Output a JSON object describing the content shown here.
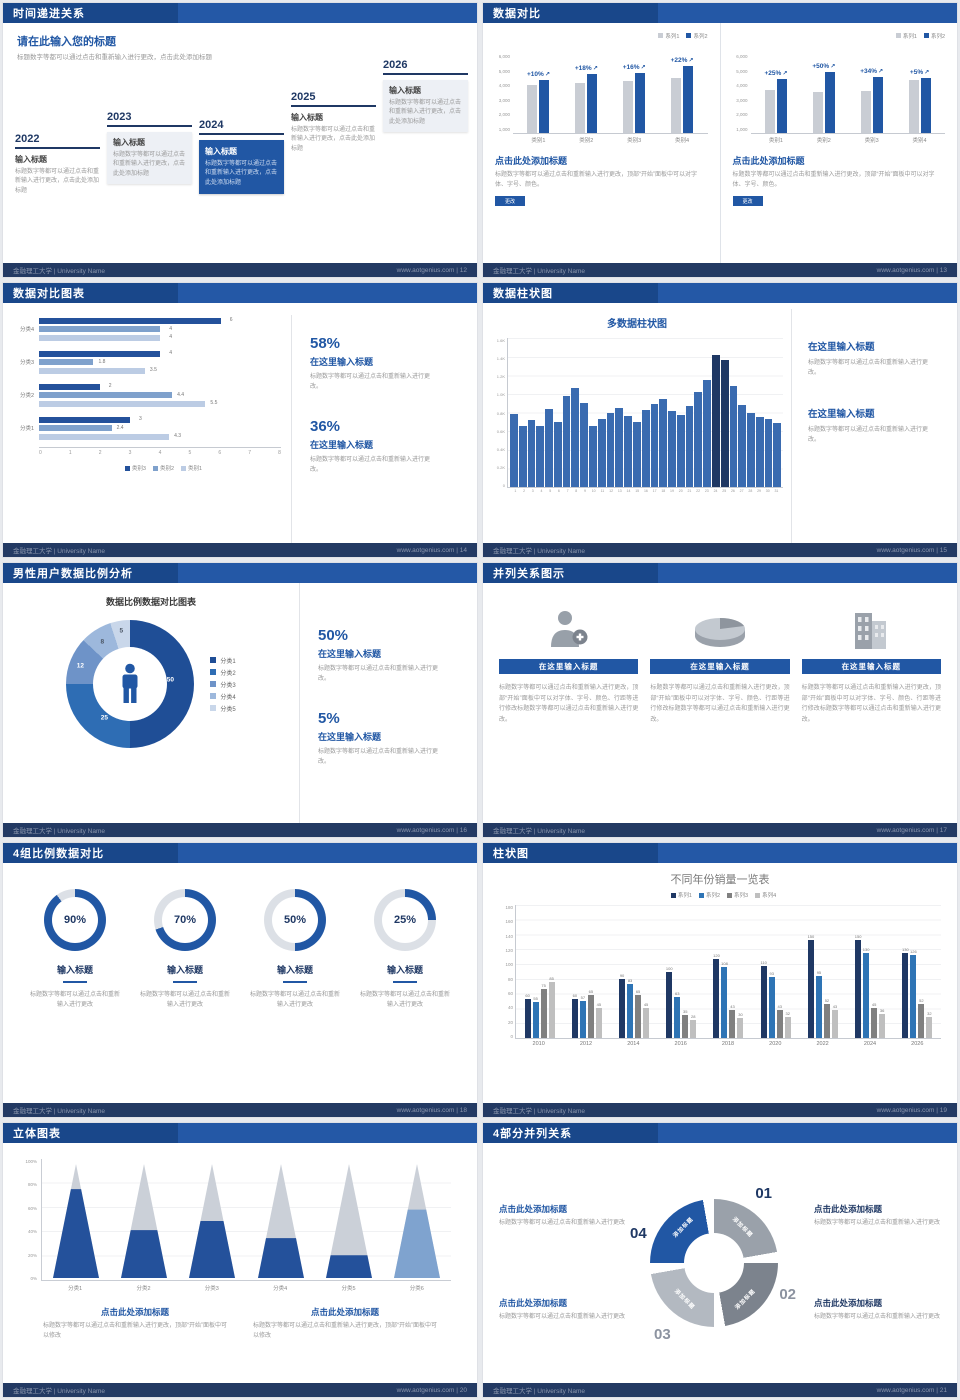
{
  "colors": {
    "accent": "#2157A4",
    "header_dark": "#19478A",
    "header_light": "#2458A6",
    "footer_bar": "#233A63",
    "navy": "#1F3864",
    "gray_bar": "#C9CDD4"
  },
  "footer_org": "金融理工大学 | University Name",
  "slides": {
    "s12": {
      "title": "时间递进关系",
      "footer_right": "www.aotgenius.com | 12",
      "heading": "请在此输入您的标题",
      "subheading": "标题数字等都可以通过点击和重新输入进行更改，点击此处添加标题",
      "item_title": "输入标题",
      "item_desc": "标题数字等都可以通过点击和重新输入进行更改，点击此处添加标题",
      "years": [
        "2022",
        "2023",
        "2024",
        "2025",
        "2026"
      ]
    },
    "s13": {
      "title": "数据对比",
      "footer_right": "www.aotgenius.com | 13",
      "legend": [
        "系列1",
        "系列2"
      ],
      "yticks": [
        "6,000",
        "5,000",
        "4,000",
        "3,000",
        "2,000",
        "1,000"
      ],
      "ymax": 6000,
      "categories": [
        "类别1",
        "类别2",
        "类别3",
        "类别4"
      ],
      "charts": [
        {
          "growth": [
            "+10%",
            "+18%",
            "+16%",
            "+22%"
          ],
          "series1": [
            4000,
            4200,
            4300,
            4600
          ],
          "series2": [
            4400,
            4950,
            5000,
            5600
          ]
        },
        {
          "growth": [
            "+25%",
            "+50%",
            "+34%",
            "+5%"
          ],
          "series1": [
            3600,
            3400,
            3500,
            4400
          ],
          "series2": [
            4500,
            5100,
            4700,
            4600
          ]
        }
      ],
      "block_heading": "点击此处添加标题",
      "block_desc": "标题数字等都可以通过点击和重新输入进行更改，顶部“开始”面板中可以对字体、字号、颜色。",
      "button_label": "更改"
    },
    "s14": {
      "title": "数据对比图表",
      "footer_right": "www.aotgenius.com | 14",
      "categories": [
        "分类4",
        "分类3",
        "分类2",
        "分类1"
      ],
      "series_names": [
        "类别3",
        "类别2",
        "类别1"
      ],
      "series_colors": [
        "#24519B",
        "#7FA1CC",
        "#BCCCE4"
      ],
      "values": [
        [
          6,
          4,
          4
        ],
        [
          4,
          1.8,
          3.5
        ],
        [
          2,
          4.4,
          5.5
        ],
        [
          3,
          2.4,
          4.3
        ]
      ],
      "xticks": [
        "0",
        "1",
        "2",
        "3",
        "4",
        "5",
        "6",
        "7",
        "8"
      ],
      "xmax": 8,
      "stats": [
        {
          "pct": "58%",
          "heading": "在这里输入标题",
          "desc": "标题数字等都可以通过点击和重新输入进行更改。"
        },
        {
          "pct": "36%",
          "heading": "在这里输入标题",
          "desc": "标题数字等都可以通过点击和重新输入进行更改。"
        }
      ]
    },
    "s15": {
      "title": "数据柱状图",
      "footer_right": "www.aotgenius.com | 15",
      "chart_title": "多数据柱状图",
      "yticks": [
        "1.6K",
        "1.4K",
        "1.2K",
        "1.0K",
        "0.8K",
        "0.6K",
        "0.4K",
        "0.2K",
        "0"
      ],
      "ymax": 1600,
      "values": [
        780,
        660,
        720,
        650,
        840,
        700,
        980,
        1060,
        900,
        660,
        730,
        790,
        850,
        760,
        700,
        830,
        890,
        950,
        820,
        770,
        870,
        1020,
        1150,
        1420,
        1360,
        1080,
        880,
        800,
        750,
        730,
        690
      ],
      "dark_indices": [
        23,
        24
      ],
      "xlabels": [
        "1",
        "2",
        "3",
        "4",
        "5",
        "6",
        "7",
        "8",
        "9",
        "10",
        "11",
        "12",
        "13",
        "14",
        "15",
        "16",
        "17",
        "18",
        "19",
        "20",
        "21",
        "22",
        "23",
        "24",
        "25",
        "26",
        "27",
        "28",
        "29",
        "30",
        "31"
      ],
      "blocks": [
        {
          "heading": "在这里输入标题",
          "desc": "标题数字等都可以通过点击和重新输入进行更改。"
        },
        {
          "heading": "在这里输入标题",
          "desc": "标题数字等都可以通过点击和重新输入进行更改。"
        }
      ]
    },
    "s16": {
      "title": "男性用户数据比例分析",
      "footer_right": "www.aotgenius.com | 16",
      "chart_title": "数据比例数据对比图表",
      "legend": [
        "分类1",
        "分类2",
        "分类3",
        "分类4",
        "分类5"
      ],
      "values": [
        50,
        25,
        12,
        8,
        5
      ],
      "seg_colors": [
        "#1F4E96",
        "#2E6DB4",
        "#6E93C8",
        "#9DB8DC",
        "#C9D7EA"
      ],
      "stats": [
        {
          "pct": "50%",
          "heading": "在这里输入标题",
          "desc": "标题数字等都可以通过点击和重新输入进行更改。"
        },
        {
          "pct": "5%",
          "heading": "在这里输入标题",
          "desc": "标题数字等都可以通过点击和重新输入进行更改。"
        }
      ]
    },
    "s17": {
      "title": "并列关系图示",
      "footer_right": "www.aotgenius.com | 17",
      "banner": "在这里输入标题",
      "desc": "标题数字等都可以通过点击和重新输入进行更改，顶部“开始”面板中可以对字体、字号、颜色、行距等进行修改标题数字等都可以通过点击和重新输入进行更改。",
      "icons": [
        "medic-icon",
        "pie-3d-icon",
        "building-icon"
      ]
    },
    "s18": {
      "title": "4组比例数据对比",
      "footer_right": "www.aotgenius.com | 18",
      "cards": [
        {
          "pct": 90,
          "pct_label": "90%",
          "heading": "输入标题",
          "desc": "标题数字等都可以通过点击和重新输入进行更改"
        },
        {
          "pct": 70,
          "pct_label": "70%",
          "heading": "输入标题",
          "desc": "标题数字等都可以通过点击和重新输入进行更改"
        },
        {
          "pct": 50,
          "pct_label": "50%",
          "heading": "输入标题",
          "desc": "标题数字等都可以通过点击和重新输入进行更改"
        },
        {
          "pct": 25,
          "pct_label": "25%",
          "heading": "输入标题",
          "desc": "标题数字等都可以通过点击和重新输入进行更改"
        }
      ]
    },
    "s19": {
      "title": "柱状图",
      "footer_right": "www.aotgenius.com | 19",
      "chart_title": "不同年份销量一览表",
      "legend": [
        "系列1",
        "系列2",
        "系列3",
        "系列4"
      ],
      "series_colors": [
        "#1F3864",
        "#2E74B5",
        "#808080",
        "#BFBFBF"
      ],
      "years": [
        "2010",
        "2012",
        "2014",
        "2016",
        "2018",
        "2020",
        "2022",
        "2024",
        "2026"
      ],
      "series": [
        {
          "name": "系列1",
          "values": [
            60,
            60,
            90,
            100,
            120,
            110,
            150,
            150,
            130
          ]
        },
        {
          "name": "系列2",
          "values": [
            55,
            57,
            83,
            63,
            108,
            93,
            95,
            130,
            126
          ]
        },
        {
          "name": "系列3",
          "values": [
            75,
            65,
            65,
            35,
            43,
            43,
            52,
            45,
            52
          ]
        },
        {
          "name": "系列4",
          "values": [
            85,
            45,
            45,
            28,
            30,
            32,
            43,
            36,
            32
          ]
        }
      ],
      "yticks": [
        "180",
        "160",
        "140",
        "120",
        "100",
        "80",
        "60",
        "40",
        "20",
        "0"
      ],
      "ymax": 180
    },
    "s20": {
      "title": "立体图表",
      "footer_right": "www.aotgenius.com | 20",
      "yticks": [
        "100%",
        "80%",
        "60%",
        "40%",
        "20%",
        "0%"
      ],
      "categories": [
        "分类1",
        "分类2",
        "分类3",
        "分类4",
        "分类5",
        "分类6"
      ],
      "fractions": [
        0.78,
        0.42,
        0.5,
        0.35,
        0.2,
        0.6
      ],
      "cone_colors": [
        "#24519B",
        "#24519B",
        "#24519B",
        "#24519B",
        "#24519B",
        "#7FA3CF"
      ],
      "blocks": [
        {
          "heading": "点击此处添加标题",
          "desc": "标题数字等都可以通过点击和重新输入进行更改，顶部“开始”面板中可以修改"
        },
        {
          "heading": "点击此处添加标题",
          "desc": "标题数字等都可以通过点击和重新输入进行更改，顶部“开始”面板中可以修改"
        }
      ]
    },
    "s21": {
      "title": "4部分并列关系",
      "footer_right": "www.aotgenius.com | 21",
      "seg_label": "添加标题",
      "seg_colors": [
        "#9AA1AA",
        "#7C838D",
        "#B3B9C1",
        "#2157A4"
      ],
      "numbers": [
        "01",
        "02",
        "03",
        "04"
      ],
      "blocks": [
        {
          "heading": "点击此处添加标题",
          "desc": "标题数字等都可以通过点击和重新输入进行更改"
        },
        {
          "heading": "点击此处添加标题",
          "desc": "标题数字等都可以通过点击和重新输入进行更改"
        },
        {
          "heading": "点击此处添加标题",
          "desc": "标题数字等都可以通过点击和重新输入进行更改"
        },
        {
          "heading": "点击此处添加标题",
          "desc": "标题数字等都可以通过点击和重新输入进行更改"
        }
      ]
    }
  }
}
